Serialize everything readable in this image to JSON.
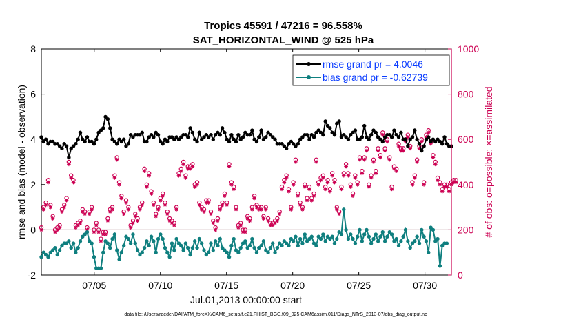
{
  "chart_data": {
    "type": "line",
    "title": "Tropics 45591 / 47216 = 96.558%",
    "subtitle": "SAT_HORIZONTAL_WIND @ 525 hPa",
    "xlabel": "Jul.01,2013 00:00:00 start",
    "ylabel": "rmse and bias (model - observation)",
    "y2label": "# of obs: o=possible; ×=assimilated",
    "footnote": "data file: /Users/raeder/DAI/ATM_forcXX/CAM6_setup/f.e21.FHIST_BGC.f09_025.CAM6assim.011/Diags_NTrS_2013-07/obs_diag_output.nc",
    "xlim": [
      1.0,
      32.0
    ],
    "ylim": [
      -2,
      8
    ],
    "y2lim": [
      0,
      1000
    ],
    "xticks": [
      5,
      10,
      15,
      20,
      25,
      30
    ],
    "xtick_labels": [
      "07/05",
      "07/10",
      "07/15",
      "07/20",
      "07/25",
      "07/30"
    ],
    "yticks": [
      -2,
      0,
      2,
      4,
      6,
      8
    ],
    "ytick_labels": [
      "-2",
      "0",
      "2",
      "4",
      "6",
      "8"
    ],
    "y2ticks": [
      0,
      200,
      400,
      600,
      800,
      1000
    ],
    "y2tick_labels": [
      "0",
      "200",
      "400",
      "600",
      "800",
      "1000"
    ],
    "zero_line": 0,
    "colors": {
      "rmse": "#000000",
      "bias": "#0f7f7f",
      "obs": "#cc0052",
      "legend_text": "#0a3cff",
      "zero_line": "#c0a0a6"
    },
    "legend": [
      {
        "label": "rmse grand pr = 4.0046"
      },
      {
        "label": "bias grand pr = -0.62739"
      }
    ],
    "series": [
      {
        "name": "rmse",
        "axis": "left",
        "values": [
          4.1,
          3.9,
          4.0,
          3.8,
          3.9,
          3.9,
          3.8,
          3.8,
          3.7,
          3.6,
          3.8,
          3.7,
          3.2,
          3.6,
          3.7,
          3.8,
          4.0,
          4.3,
          4.0,
          3.9,
          4.1,
          3.9,
          3.9,
          3.8,
          4.0,
          4.3,
          4.4,
          4.5,
          5.0,
          4.9,
          4.5,
          4.0,
          3.9,
          3.8,
          4.0,
          3.9,
          4.0,
          3.7,
          3.8,
          4.2,
          4.1,
          4.2,
          4.2,
          4.2,
          4.3,
          3.9,
          3.9,
          4.1,
          4.2,
          4.1,
          4.3,
          4.2,
          3.9,
          3.8,
          4.0,
          3.9,
          4.1,
          4.1,
          4.0,
          4.1,
          4.0,
          4.1,
          4.2,
          4.2,
          4.1,
          4.5,
          4.3,
          4.0,
          3.9,
          4.3,
          4.0,
          4.1,
          4.2,
          4.1,
          4.2,
          4.0,
          4.2,
          4.3,
          4.2,
          4.5,
          4.3,
          4.0,
          3.9,
          4.2,
          4.0,
          3.9,
          4.2,
          4.0,
          4.1,
          4.3,
          4.2,
          4.2,
          4.4,
          4.0,
          3.9,
          4.1,
          4.4,
          4.0,
          4.1,
          4.3,
          4.2,
          4.1,
          4.0,
          3.8,
          3.8,
          3.8,
          3.7,
          3.6,
          3.8,
          3.9,
          3.8,
          3.7,
          3.8,
          4.0,
          4.1,
          4.2,
          4.2,
          4.0,
          4.2,
          4.1,
          4.3,
          4.4,
          4.3,
          4.2,
          4.8,
          4.6,
          4.5,
          4.3,
          4.2,
          4.7,
          4.8,
          4.1,
          4.2,
          4.1,
          4.0,
          4.2,
          4.3,
          4.4,
          4.0,
          4.0,
          4.1,
          4.6,
          4.1,
          4.0,
          4.2,
          4.4,
          4.3,
          4.1,
          4.0,
          3.9,
          4.1,
          4.2,
          4.2,
          4.1,
          4.4,
          4.2,
          4.1,
          4.3,
          4.0,
          4.0,
          3.7,
          4.0,
          4.1,
          4.4,
          4.0,
          3.8,
          3.5,
          3.7,
          4.0,
          4.1,
          3.9,
          4.0,
          3.9,
          4.0,
          3.9,
          3.8,
          4.1,
          3.8,
          3.7,
          3.7
        ]
      },
      {
        "name": "bias",
        "axis": "left",
        "values": [
          -1.2,
          -1.0,
          -1.1,
          -1.2,
          -1.0,
          -0.9,
          -0.8,
          -1.1,
          -0.9,
          -0.7,
          -0.6,
          -0.6,
          -0.5,
          -0.8,
          -0.6,
          -1.0,
          -0.8,
          -0.5,
          -0.3,
          -0.2,
          -0.1,
          -0.5,
          -0.6,
          -1.2,
          -1.7,
          -1.7,
          -1.7,
          -1.0,
          -0.5,
          -0.6,
          -0.8,
          -0.4,
          -0.2,
          -0.9,
          -1.3,
          -1.0,
          -0.7,
          -0.3,
          -0.4,
          -0.6,
          -0.2,
          -0.6,
          -0.9,
          -1.1,
          -1.0,
          -0.8,
          -0.5,
          -0.7,
          -0.3,
          -0.5,
          -1.0,
          -0.4,
          -0.2,
          -0.4,
          -0.8,
          -1.0,
          -1.2,
          -0.6,
          -0.9,
          -0.4,
          -0.6,
          -0.7,
          -0.9,
          -0.6,
          -0.8,
          -1.1,
          -0.8,
          -0.5,
          -0.8,
          -0.4,
          -0.6,
          -0.9,
          -1.1,
          -1.0,
          -0.6,
          -0.9,
          -0.5,
          -0.7,
          -0.4,
          -0.8,
          -0.9,
          -1.0,
          -1.2,
          -0.7,
          -0.4,
          -0.9,
          -1.0,
          -0.8,
          -0.6,
          -0.5,
          -0.8,
          -0.7,
          -0.4,
          -0.8,
          -1.0,
          -0.8,
          -0.7,
          -0.5,
          -0.9,
          -1.0,
          -0.8,
          -0.6,
          -1.0,
          -0.8,
          -0.6,
          -0.7,
          -0.5,
          -0.6,
          -0.7,
          -0.4,
          -0.5,
          -0.3,
          -0.7,
          -0.4,
          -0.6,
          -0.2,
          -0.5,
          -0.4,
          -0.3,
          -0.6,
          -0.7,
          -0.3,
          -0.4,
          -0.2,
          -0.5,
          -0.3,
          -0.4,
          -0.3,
          -0.6,
          -0.4,
          -0.1,
          -0.2,
          0.9,
          0.0,
          -0.4,
          -0.2,
          -0.4,
          -0.6,
          -0.3,
          0.0,
          -0.5,
          -0.2,
          0.0,
          -0.3,
          -0.6,
          -0.4,
          -0.2,
          -0.5,
          -0.3,
          -0.1,
          -0.5,
          -0.3,
          -0.1,
          -0.2,
          -0.5,
          -0.4,
          -0.7,
          -0.5,
          -0.3,
          0.0,
          -0.5,
          -0.8,
          -0.6,
          -0.5,
          -0.3,
          -0.6,
          0.0,
          -0.3,
          -0.5,
          -1.0,
          0.1,
          0.0,
          -0.5,
          -0.4,
          -1.6,
          -0.7,
          -0.6,
          -0.6
        ]
      },
      {
        "name": "obs_possible",
        "axis": "right",
        "values": [
          210,
          300,
          320,
          420,
          310,
          260,
          200,
          210,
          220,
          290,
          310,
          340,
          500,
          440,
          420,
          220,
          230,
          240,
          290,
          280,
          210,
          280,
          300,
          200,
          230,
          200,
          160,
          190,
          190,
          250,
          290,
          300,
          440,
          520,
          410,
          350,
          280,
          330,
          300,
          220,
          240,
          270,
          250,
          300,
          320,
          470,
          400,
          450,
          370,
          320,
          270,
          300,
          340,
          360,
          320,
          280,
          250,
          240,
          230,
          300,
          450,
          470,
          500,
          440,
          480,
          480,
          490,
          400,
          410,
          320,
          300,
          290,
          330,
          330,
          280,
          240,
          210,
          250,
          300,
          320,
          360,
          320,
          490,
          410,
          390,
          300,
          220,
          230,
          200,
          200,
          260,
          250,
          300,
          350,
          310,
          300,
          300,
          260,
          300,
          250,
          230,
          230,
          240,
          250,
          280,
          390,
          420,
          440,
          380,
          300,
          410,
          510,
          360,
          320,
          300,
          400,
          340,
          390,
          340,
          360,
          510,
          410,
          430,
          440,
          390,
          420,
          380,
          450,
          420,
          300,
          280,
          390,
          450,
          490,
          450,
          400,
          360,
          440,
          410,
          520,
          460,
          520,
          560,
          400,
          440,
          510,
          460,
          560,
          530,
          630,
          560,
          600,
          520,
          390,
          480,
          470,
          580,
          560,
          560,
          600,
          620,
          570,
          410,
          440,
          510,
          570,
          600,
          410,
          620,
          640,
          590,
          530,
          500,
          430,
          410,
          380,
          400,
          400,
          380,
          410,
          420,
          420
        ]
      },
      {
        "name": "obs_assimilated",
        "axis": "right",
        "values": [
          200,
          290,
          310,
          410,
          300,
          250,
          190,
          200,
          210,
          280,
          300,
          330,
          490,
          430,
          410,
          210,
          220,
          230,
          280,
          270,
          200,
          270,
          290,
          190,
          220,
          190,
          150,
          180,
          180,
          240,
          280,
          290,
          430,
          510,
          400,
          340,
          270,
          320,
          290,
          210,
          230,
          260,
          240,
          290,
          310,
          460,
          390,
          440,
          360,
          310,
          260,
          290,
          330,
          350,
          310,
          270,
          240,
          230,
          220,
          290,
          440,
          460,
          490,
          430,
          470,
          470,
          480,
          390,
          400,
          310,
          290,
          280,
          320,
          320,
          270,
          230,
          200,
          240,
          290,
          310,
          350,
          310,
          480,
          400,
          380,
          290,
          210,
          220,
          190,
          190,
          250,
          240,
          290,
          340,
          300,
          290,
          290,
          250,
          290,
          240,
          220,
          220,
          230,
          240,
          270,
          380,
          410,
          430,
          370,
          290,
          400,
          500,
          350,
          310,
          290,
          390,
          330,
          380,
          330,
          350,
          500,
          400,
          420,
          430,
          380,
          410,
          370,
          440,
          410,
          290,
          270,
          380,
          440,
          480,
          440,
          390,
          350,
          430,
          400,
          510,
          450,
          510,
          550,
          390,
          430,
          500,
          450,
          550,
          520,
          620,
          550,
          590,
          510,
          380,
          470,
          460,
          570,
          550,
          550,
          590,
          610,
          560,
          400,
          430,
          500,
          560,
          590,
          400,
          610,
          630,
          580,
          520,
          490,
          420,
          400,
          370,
          390,
          390,
          370,
          400,
          410,
          410
        ]
      }
    ]
  }
}
